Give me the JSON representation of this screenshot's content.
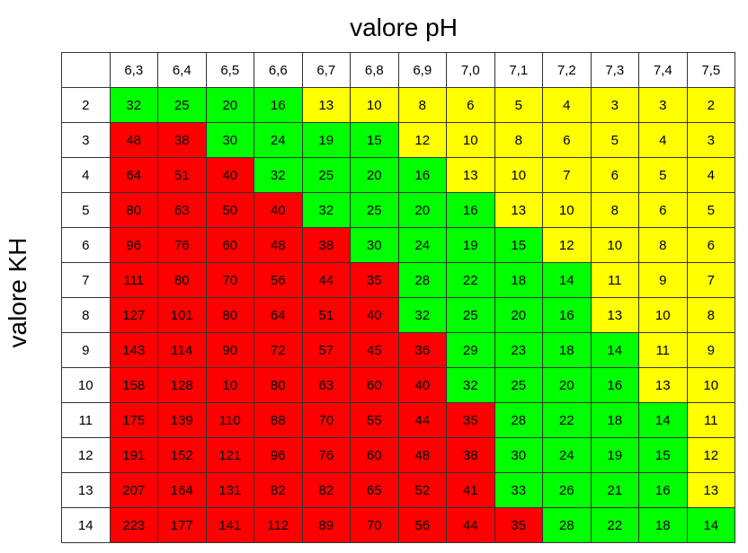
{
  "chart_data": {
    "type": "heatmap",
    "xlabel": "valore pH",
    "ylabel": "valore KH",
    "x": [
      "6,3",
      "6,4",
      "6,5",
      "6,6",
      "6,7",
      "6,8",
      "6,9",
      "7,0",
      "7,1",
      "7,2",
      "7,3",
      "7,4",
      "7,5"
    ],
    "y": [
      "2",
      "3",
      "4",
      "5",
      "6",
      "7",
      "8",
      "9",
      "10",
      "11",
      "12",
      "13",
      "14"
    ],
    "values": [
      [
        32,
        25,
        20,
        16,
        13,
        10,
        8,
        6,
        5,
        4,
        3,
        3,
        2
      ],
      [
        48,
        38,
        30,
        24,
        19,
        15,
        12,
        10,
        8,
        6,
        5,
        4,
        3
      ],
      [
        64,
        51,
        40,
        32,
        25,
        20,
        16,
        13,
        10,
        7,
        6,
        5,
        4
      ],
      [
        80,
        63,
        50,
        40,
        32,
        25,
        20,
        16,
        13,
        10,
        8,
        6,
        5
      ],
      [
        96,
        76,
        60,
        48,
        38,
        30,
        24,
        19,
        15,
        12,
        10,
        8,
        6
      ],
      [
        111,
        80,
        70,
        56,
        44,
        35,
        28,
        22,
        18,
        14,
        11,
        9,
        7
      ],
      [
        127,
        101,
        80,
        64,
        51,
        40,
        32,
        25,
        20,
        16,
        13,
        10,
        8
      ],
      [
        143,
        114,
        90,
        72,
        57,
        45,
        36,
        29,
        23,
        18,
        14,
        11,
        9
      ],
      [
        158,
        128,
        10,
        80,
        63,
        60,
        40,
        32,
        25,
        20,
        16,
        13,
        10
      ],
      [
        175,
        139,
        110,
        88,
        70,
        55,
        44,
        35,
        28,
        22,
        18,
        14,
        11
      ],
      [
        191,
        152,
        121,
        96,
        76,
        60,
        48,
        38,
        30,
        24,
        19,
        15,
        12
      ],
      [
        207,
        164,
        131,
        82,
        82,
        65,
        52,
        41,
        33,
        26,
        21,
        16,
        13
      ],
      [
        223,
        177,
        141,
        112,
        89,
        70,
        56,
        44,
        35,
        28,
        22,
        18,
        14
      ]
    ],
    "cell_colors": [
      [
        "g",
        "g",
        "g",
        "g",
        "y",
        "y",
        "y",
        "y",
        "y",
        "y",
        "y",
        "y",
        "y"
      ],
      [
        "r",
        "r",
        "g",
        "g",
        "g",
        "g",
        "y",
        "y",
        "y",
        "y",
        "y",
        "y",
        "y"
      ],
      [
        "r",
        "r",
        "r",
        "g",
        "g",
        "g",
        "g",
        "y",
        "y",
        "y",
        "y",
        "y",
        "y"
      ],
      [
        "r",
        "r",
        "r",
        "r",
        "g",
        "g",
        "g",
        "g",
        "y",
        "y",
        "y",
        "y",
        "y"
      ],
      [
        "r",
        "r",
        "r",
        "r",
        "r",
        "g",
        "g",
        "g",
        "g",
        "y",
        "y",
        "y",
        "y"
      ],
      [
        "r",
        "r",
        "r",
        "r",
        "r",
        "r",
        "g",
        "g",
        "g",
        "g",
        "y",
        "y",
        "y"
      ],
      [
        "r",
        "r",
        "r",
        "r",
        "r",
        "r",
        "g",
        "g",
        "g",
        "g",
        "y",
        "y",
        "y"
      ],
      [
        "r",
        "r",
        "r",
        "r",
        "r",
        "r",
        "r",
        "g",
        "g",
        "g",
        "g",
        "y",
        "y"
      ],
      [
        "r",
        "r",
        "r",
        "r",
        "r",
        "r",
        "r",
        "g",
        "g",
        "g",
        "g",
        "y",
        "y"
      ],
      [
        "r",
        "r",
        "r",
        "r",
        "r",
        "r",
        "r",
        "r",
        "g",
        "g",
        "g",
        "g",
        "y"
      ],
      [
        "r",
        "r",
        "r",
        "r",
        "r",
        "r",
        "r",
        "r",
        "g",
        "g",
        "g",
        "g",
        "y"
      ],
      [
        "r",
        "r",
        "r",
        "r",
        "r",
        "r",
        "r",
        "r",
        "g",
        "g",
        "g",
        "g",
        "y"
      ],
      [
        "r",
        "r",
        "r",
        "r",
        "r",
        "r",
        "r",
        "r",
        "r",
        "g",
        "g",
        "g",
        "g"
      ]
    ],
    "colors": {
      "r": "#ff0000",
      "g": "#00ff00",
      "y": "#ffff00"
    }
  }
}
